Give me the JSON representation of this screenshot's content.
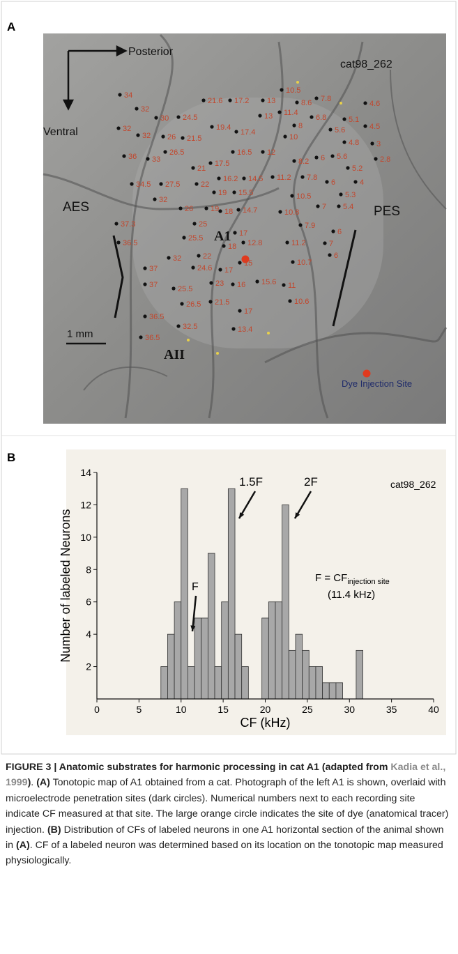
{
  "panel_a": {
    "label": "A",
    "direction_posterior": "Posterior",
    "direction_ventral": "Ventral",
    "id": "cat98_262",
    "aes": "AES",
    "pes": "PES",
    "a1": "A1",
    "aii": "AII",
    "scale": "1 mm",
    "legend": "Dye Injection Site",
    "sites": [
      "34",
      "32",
      "30",
      "24.5",
      "21.6",
      "17.2",
      "13",
      "10.5",
      "8.6",
      "7.8",
      "4.6",
      "13",
      "11.4",
      "6.8",
      "5.1",
      "4.5",
      "32",
      "32",
      "26",
      "21.5",
      "19.4",
      "17.4",
      "8",
      "10",
      "5.6",
      "4.8",
      "3",
      "36",
      "33",
      "26.5",
      "16.5",
      "12",
      "2.8",
      "17.5",
      "8.2",
      "6",
      "5.6",
      "21",
      "5.2",
      "16.2",
      "14.5",
      "11.2",
      "7.8",
      "6",
      "4",
      "34.5",
      "27.5",
      "22",
      "19",
      "15.5",
      "10.5",
      "5.3",
      "32",
      "7",
      "5.4",
      "26",
      "19",
      "18",
      "14.7",
      "10.8",
      "37.3",
      "25",
      "17",
      "7.9",
      "6",
      "36.5",
      "25.5",
      "18",
      "12.8",
      "11.2",
      "7",
      "22",
      "32",
      "6",
      "15",
      "10.7",
      "37",
      "24.6",
      "17",
      "37",
      "25.5",
      "23",
      "16",
      "15.6",
      "11",
      "26.5",
      "21.5",
      "10.6",
      "36.5",
      "17",
      "32.5",
      "13.4",
      "36.5"
    ]
  },
  "chart_data": {
    "type": "histogram",
    "panel_label": "B",
    "bins": [
      7.6,
      8.4,
      9.2,
      10.0,
      10.8,
      11.6,
      12.4,
      13.2,
      14.0,
      14.8,
      15.6,
      16.4,
      17.2,
      18.0,
      18.8,
      19.6,
      20.4,
      21.2,
      22.0,
      22.8,
      23.6,
      24.4,
      25.2,
      26.0,
      26.8,
      27.6,
      28.4,
      29.2,
      30.0,
      30.8,
      31.6
    ],
    "values": [
      2,
      4,
      6,
      13,
      2,
      5,
      5,
      9,
      2,
      6,
      13,
      4,
      2,
      0,
      0,
      5,
      6,
      6,
      12,
      3,
      4,
      3,
      2,
      2,
      1,
      1,
      1,
      0,
      0,
      3
    ],
    "color": "#a8a8a8",
    "xlim": [
      0,
      40
    ],
    "xticks": [
      0,
      5,
      10,
      15,
      20,
      25,
      30,
      35,
      40
    ],
    "ylim": [
      0,
      14
    ],
    "yticks": [
      2,
      4,
      6,
      8,
      10,
      12,
      14
    ],
    "xlabel": "CF (kHz)",
    "ylabel": "Number of labeled Neurons",
    "annotations": {
      "id": "cat98_262",
      "f": "F",
      "f15": "1.5F",
      "f2": "2F",
      "formula": "F = CF",
      "subscript": "injection site",
      "formula_value": "(11.4 kHz)"
    }
  },
  "caption": {
    "runs": [
      "FIGURE 3 | Anatomic substrates for harmonic processing in cat A1 (adapted from ",
      "Kadia et al., 1999",
      ")",
      ". ",
      "(A)",
      " Tonotopic map of A1 obtained from a cat. Photograph of the left A1 is shown, overlaid with microelectrode penetration sites (dark circles). Numerical numbers next to each recording site indicate CF measured at that site. The large orange circle indicates the site of dye (anatomical tracer) injection. ",
      "(B)",
      " Distribution of CFs of labeled neurons in one A1 horizontal section of the animal shown in ",
      "(A)",
      ". CF of a labeled neuron was determined based on its location on the tonotopic map measured physiologically."
    ]
  }
}
